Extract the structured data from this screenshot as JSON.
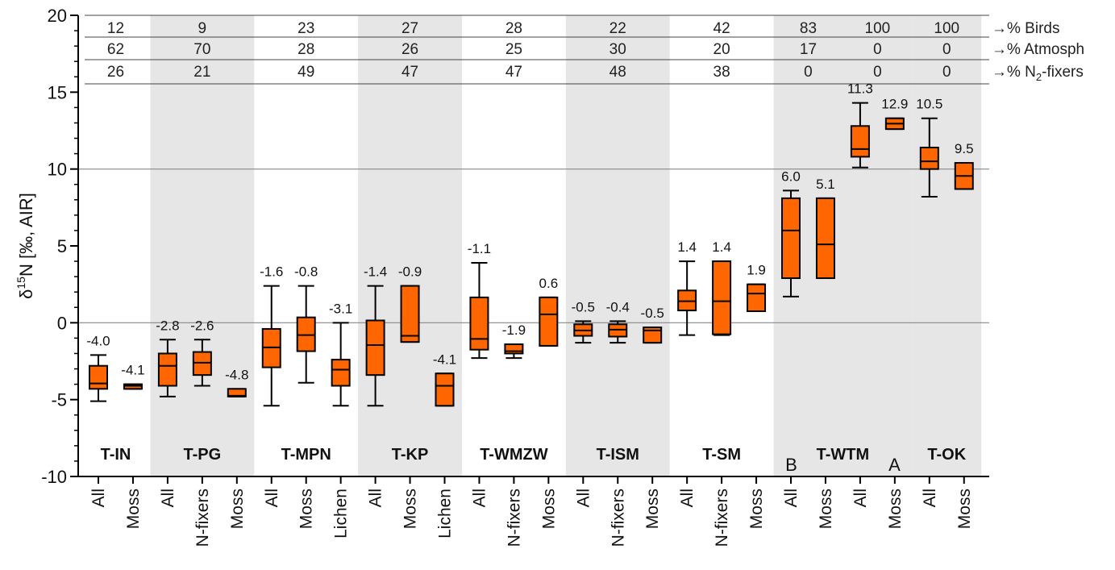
{
  "chart_data": {
    "type": "box",
    "ylabel": "δ15N [‰, AIR]",
    "ylabel_parts": {
      "delta": "δ",
      "sup": "15",
      "rest": "N [‰, AIR]"
    },
    "ylim": [
      -10,
      20
    ],
    "yticks": [
      -10,
      -5,
      0,
      5,
      10,
      15,
      20
    ],
    "ytick_labels": [
      "-10",
      "-5",
      "0",
      "5",
      "10",
      "15",
      "20"
    ],
    "reference_lines": [
      0,
      10
    ],
    "colors": {
      "box_fill": "#ff6600",
      "band": "#e6e6e6",
      "line": "#000000",
      "ref_line": "#888888"
    },
    "sites": [
      {
        "name": "T-IN",
        "shaded": false,
        "categories": [
          "All",
          "Moss"
        ]
      },
      {
        "name": "T-PG",
        "shaded": true,
        "categories": [
          "All",
          "N-fixers",
          "Moss"
        ]
      },
      {
        "name": "T-MPN",
        "shaded": false,
        "categories": [
          "All",
          "Moss",
          "Lichen"
        ]
      },
      {
        "name": "T-KP",
        "shaded": true,
        "categories": [
          "All",
          "Moss",
          "Lichen"
        ]
      },
      {
        "name": "T-WMZW",
        "shaded": false,
        "categories": [
          "All",
          "N-fixers",
          "Moss"
        ]
      },
      {
        "name": "T-ISM",
        "shaded": true,
        "categories": [
          "All",
          "N-fixers",
          "Moss"
        ]
      },
      {
        "name": "T-SM",
        "shaded": false,
        "categories": [
          "All",
          "N-fixers",
          "Moss"
        ]
      },
      {
        "name": "T-WTM",
        "shaded": true,
        "categories": [
          "All",
          "Moss",
          "All",
          "Moss"
        ],
        "sub_labels": [
          "B",
          "A"
        ]
      },
      {
        "name": "T-OK",
        "shaded": true,
        "categories": [
          "All",
          "Moss"
        ]
      }
    ],
    "boxes": [
      {
        "category": "All",
        "site": "T-IN",
        "min": -5.1,
        "q1": -4.3,
        "median": -3.95,
        "q3": -2.8,
        "max": -2.1,
        "label": "-4.0"
      },
      {
        "category": "Moss",
        "site": "T-IN",
        "min": -4.3,
        "q1": -4.3,
        "median": -4.1,
        "q3": -4.0,
        "max": -4.0,
        "label": "-4.1"
      },
      {
        "category": "All",
        "site": "T-PG",
        "min": -4.8,
        "q1": -4.1,
        "median": -2.8,
        "q3": -2.0,
        "max": -1.1,
        "label": "-2.8"
      },
      {
        "category": "N-fixers",
        "site": "T-PG",
        "min": -4.1,
        "q1": -3.4,
        "median": -2.6,
        "q3": -1.9,
        "max": -1.1,
        "label": "-2.6"
      },
      {
        "category": "Moss",
        "site": "T-PG",
        "min": -4.8,
        "q1": -4.8,
        "median": -4.75,
        "q3": -4.3,
        "max": -4.3,
        "label": "-4.8"
      },
      {
        "category": "All",
        "site": "T-MPN",
        "min": -5.4,
        "q1": -2.9,
        "median": -1.6,
        "q3": -0.4,
        "max": 2.4,
        "label": "-1.6"
      },
      {
        "category": "Moss",
        "site": "T-MPN",
        "min": -3.9,
        "q1": -1.85,
        "median": -0.8,
        "q3": 0.35,
        "max": 2.4,
        "label": "-0.8"
      },
      {
        "category": "Lichen",
        "site": "T-MPN",
        "min": -5.4,
        "q1": -4.1,
        "median": -3.05,
        "q3": -2.4,
        "max": 0.0,
        "label": "-3.1"
      },
      {
        "category": "All",
        "site": "T-KP",
        "min": -5.4,
        "q1": -3.4,
        "median": -1.45,
        "q3": 0.15,
        "max": 2.4,
        "label": "-1.4"
      },
      {
        "category": "Moss",
        "site": "T-KP",
        "min": -1.25,
        "q1": -1.25,
        "median": -0.85,
        "q3": 2.4,
        "max": 2.4,
        "label": "-0.9"
      },
      {
        "category": "Lichen",
        "site": "T-KP",
        "min": -5.4,
        "q1": -5.4,
        "median": -4.1,
        "q3": -3.3,
        "max": -3.3,
        "label": "-4.1"
      },
      {
        "category": "All",
        "site": "T-WMZW",
        "min": -2.3,
        "q1": -1.75,
        "median": -1.05,
        "q3": 1.65,
        "max": 3.9,
        "label": "-1.1"
      },
      {
        "category": "N-fixers",
        "site": "T-WMZW",
        "min": -2.3,
        "q1": -2.0,
        "median": -1.85,
        "q3": -1.4,
        "max": -1.4,
        "label": "-1.9"
      },
      {
        "category": "Moss",
        "site": "T-WMZW",
        "min": -1.5,
        "q1": -1.5,
        "median": 0.55,
        "q3": 1.65,
        "max": 1.65,
        "label": "0.6"
      },
      {
        "category": "All",
        "site": "T-ISM",
        "min": -1.3,
        "q1": -0.85,
        "median": -0.5,
        "q3": -0.1,
        "max": 0.1,
        "label": "-0.5"
      },
      {
        "category": "N-fixers",
        "site": "T-ISM",
        "min": -1.3,
        "q1": -0.9,
        "median": -0.45,
        "q3": -0.1,
        "max": 0.1,
        "label": "-0.4"
      },
      {
        "category": "Moss",
        "site": "T-ISM",
        "min": -1.3,
        "q1": -1.3,
        "median": -0.5,
        "q3": -0.3,
        "max": -0.3,
        "label": "-0.5"
      },
      {
        "category": "All",
        "site": "T-SM",
        "min": -0.8,
        "q1": 0.8,
        "median": 1.4,
        "q3": 2.1,
        "max": 4.0,
        "label": "1.4"
      },
      {
        "category": "N-fixers",
        "site": "T-SM",
        "min": -0.8,
        "q1": -0.75,
        "median": 1.4,
        "q3": 4.0,
        "max": 4.0,
        "label": "1.4"
      },
      {
        "category": "Moss",
        "site": "T-SM",
        "min": 0.75,
        "q1": 0.75,
        "median": 1.9,
        "q3": 2.5,
        "max": 2.5,
        "label": "1.9"
      },
      {
        "category": "All",
        "site": "T-WTM B",
        "min": 1.7,
        "q1": 2.9,
        "median": 6.0,
        "q3": 8.1,
        "max": 8.6,
        "label": "6.0"
      },
      {
        "category": "Moss",
        "site": "T-WTM B",
        "min": 2.9,
        "q1": 2.9,
        "median": 5.1,
        "q3": 8.1,
        "max": 8.1,
        "label": "5.1"
      },
      {
        "category": "All",
        "site": "T-WTM A",
        "min": 10.1,
        "q1": 10.8,
        "median": 11.3,
        "q3": 12.8,
        "max": 14.3,
        "label": "11.3"
      },
      {
        "category": "Moss",
        "site": "T-WTM A",
        "min": 12.6,
        "q1": 12.6,
        "median": 12.95,
        "q3": 13.3,
        "max": 13.3,
        "label": "12.9"
      },
      {
        "category": "All",
        "site": "T-OK",
        "min": 8.2,
        "q1": 10.0,
        "median": 10.5,
        "q3": 11.4,
        "max": 13.3,
        "label": "10.5"
      },
      {
        "category": "Moss",
        "site": "T-OK",
        "min": 8.7,
        "q1": 8.7,
        "median": 9.55,
        "q3": 10.4,
        "max": 10.4,
        "label": "9.5"
      }
    ],
    "source_table": {
      "rows": [
        {
          "label": "→% Birds",
          "values": [
            "12",
            "9",
            "23",
            "27",
            "28",
            "22",
            "42",
            "83",
            "100",
            "100"
          ]
        },
        {
          "label": "→% Atmosph",
          "values": [
            "62",
            "70",
            "28",
            "26",
            "25",
            "30",
            "20",
            "17",
            "0",
            "0"
          ]
        },
        {
          "label": "→% N2-fixers",
          "label_parts": {
            "prefix": "→% N",
            "sub": "2",
            "suffix": "-fixers"
          },
          "values": [
            "26",
            "21",
            "49",
            "47",
            "47",
            "48",
            "38",
            "0",
            "0",
            "0"
          ]
        }
      ]
    }
  }
}
